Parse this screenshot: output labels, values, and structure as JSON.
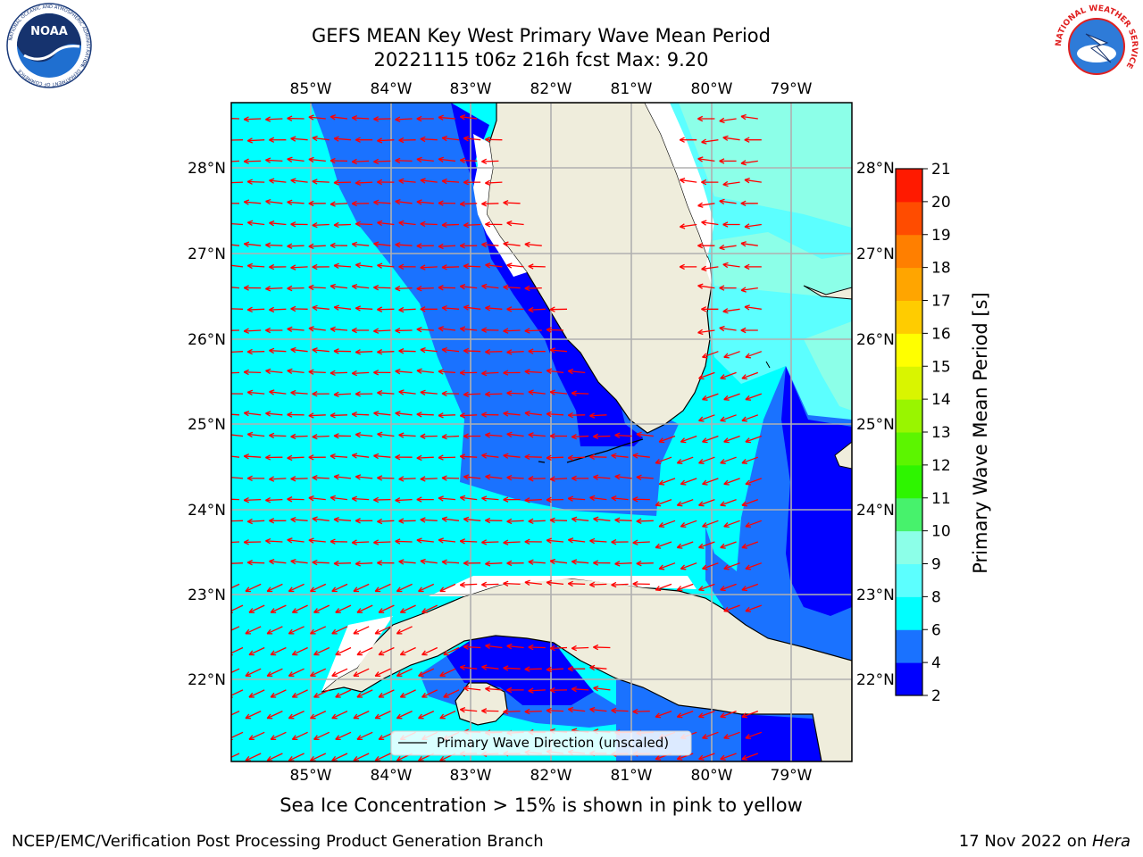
{
  "title_line1": "GEFS MEAN Key West Primary Wave Mean Period",
  "title_line2": "20221115 t06z 216h fcst   Max: 9.20",
  "longitude_labels": [
    "85°W",
    "84°W",
    "83°W",
    "82°W",
    "81°W",
    "80°W",
    "79°W"
  ],
  "latitude_labels": [
    "28°N",
    "27°N",
    "26°N",
    "25°N",
    "24°N",
    "23°N",
    "22°N"
  ],
  "legend_label": "Primary Wave Direction (unscaled)",
  "colorbar": {
    "label": "Primary Wave Mean Period [s]",
    "ticks": [
      "2",
      "4",
      "6",
      "8",
      "9",
      "10",
      "11",
      "12",
      "13",
      "14",
      "15",
      "16",
      "17",
      "18",
      "19",
      "20",
      "21"
    ],
    "colors": [
      "#0000ff",
      "#1a72ff",
      "#00ffff",
      "#5cffff",
      "#8cffe8",
      "#47f26c",
      "#2ef500",
      "#5cf500",
      "#99f500",
      "#d9f500",
      "#ffff00",
      "#ffcc00",
      "#ffa500",
      "#ff7f00",
      "#ff4c00",
      "#ff1a00"
    ]
  },
  "caption": "Sea Ice Concentration > 15% is shown in pink to yellow",
  "footer_left": "NCEP/EMC/Verification Post Processing Product Generation Branch",
  "footer_date": "17 Nov 2022 on ",
  "footer_host": "Hera",
  "logos": {
    "noaa_text": "NOAA",
    "noaa_ring": "NATIONAL OCEANIC AND ATMOSPHERIC ADMINISTRATION",
    "noaa_ring_bottom": "U.S. DEPARTMENT OF COMMERCE",
    "nws_ring": "NATIONAL WEATHER SERVICE"
  },
  "colors": {
    "ocean_cyan": "#00ffff",
    "ocean_mid": "#1a72ff",
    "ocean_deep": "#0000ff",
    "ocean_light": "#5cffff",
    "ocean_teal": "#8cffe8",
    "land": "#efeddc",
    "arrow": "#ff0000",
    "grid": "#b0b0b0"
  }
}
